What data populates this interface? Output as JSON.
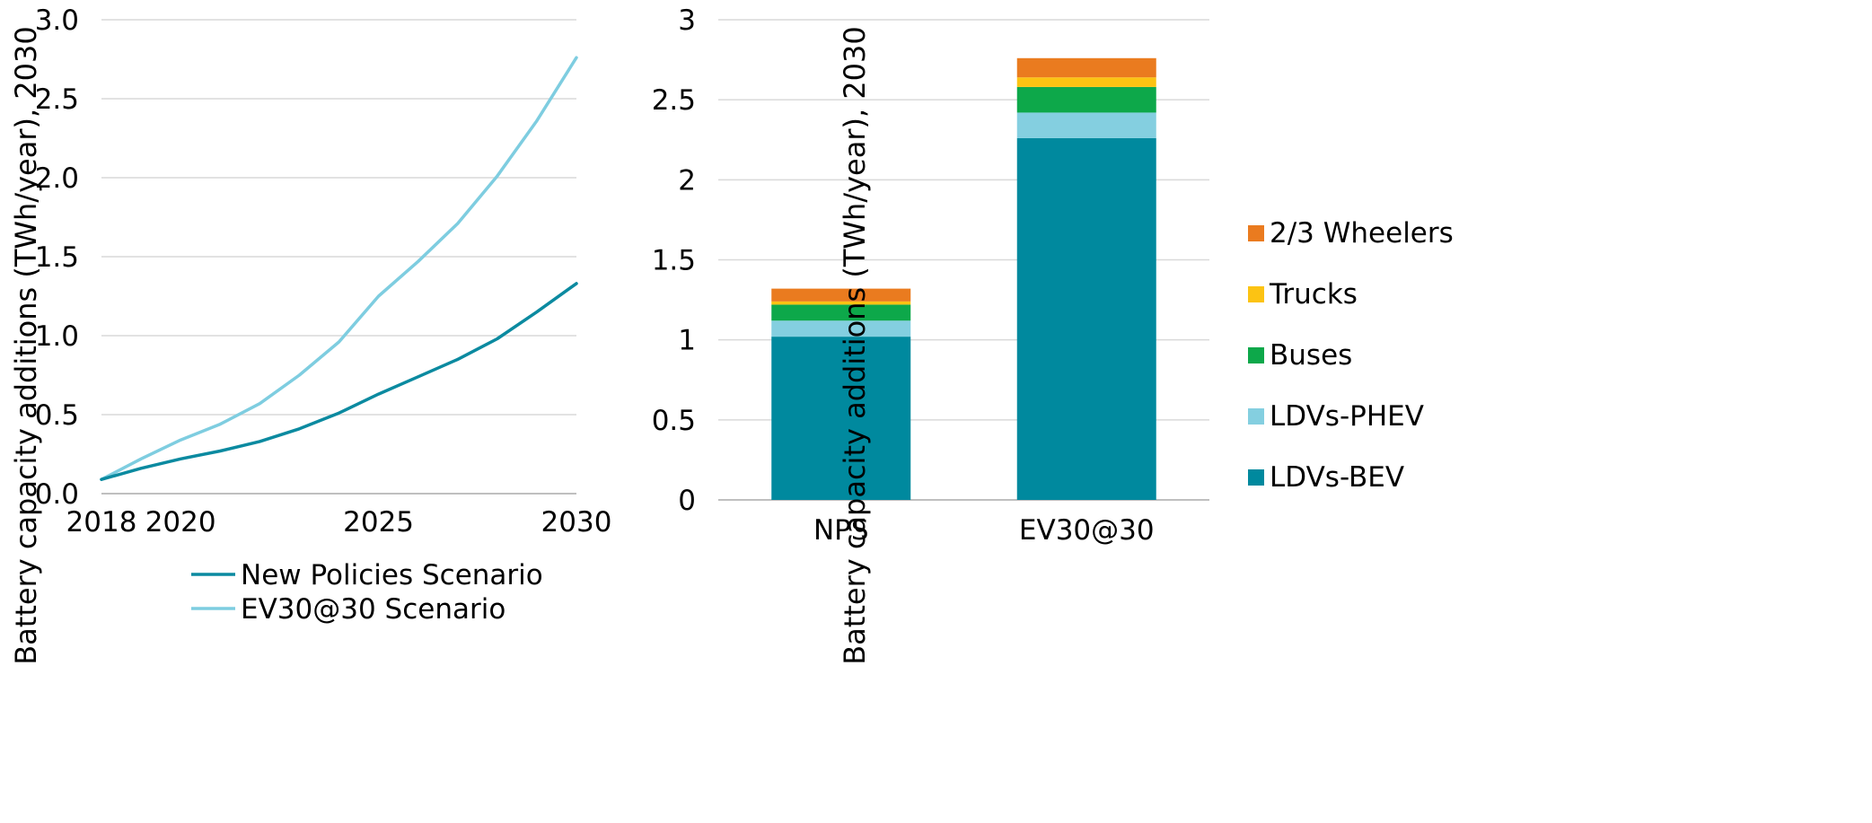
{
  "chart_data": [
    {
      "type": "line",
      "title": "",
      "xlabel": "",
      "ylabel": "Battery capacity additions (TWh/year), 2030",
      "x": [
        2018,
        2019,
        2020,
        2021,
        2022,
        2023,
        2024,
        2025,
        2026,
        2027,
        2028,
        2029,
        2030
      ],
      "x_ticks": [
        "2018",
        "2020",
        "2025",
        "2030"
      ],
      "xlim": [
        2018,
        2030
      ],
      "y_ticks": [
        "0.0",
        "0.5",
        "1.0",
        "1.5",
        "2.0",
        "2.5",
        "3.0"
      ],
      "ylim": [
        0,
        3.0
      ],
      "grid": true,
      "legend_position": "bottom",
      "series": [
        {
          "name": "New Policies Scenario",
          "color": "#0b8aa0",
          "values": [
            0.09,
            0.16,
            0.22,
            0.27,
            0.33,
            0.41,
            0.51,
            0.63,
            0.74,
            0.85,
            0.98,
            1.15,
            1.33
          ]
        },
        {
          "name": "EV30@30 Scenario",
          "color": "#7ecde0",
          "values": [
            0.09,
            0.22,
            0.34,
            0.44,
            0.57,
            0.75,
            0.96,
            1.25,
            1.47,
            1.71,
            2.01,
            2.36,
            2.76
          ]
        }
      ]
    },
    {
      "type": "bar",
      "stacked": true,
      "title": "",
      "xlabel": "",
      "ylabel": "Battery capacity additions (TWh/year), 2030",
      "categories": [
        "NPS",
        "EV30@30"
      ],
      "y_ticks": [
        "0",
        "0.5",
        "1",
        "1.5",
        "2",
        "2.5",
        "3"
      ],
      "ylim": [
        0,
        3
      ],
      "grid": true,
      "legend_position": "right",
      "series": [
        {
          "name": "LDVs-BEV",
          "color": "#00899e",
          "values": [
            1.02,
            2.26
          ]
        },
        {
          "name": "LDVs-PHEV",
          "color": "#84cfe0",
          "values": [
            0.1,
            0.16
          ]
        },
        {
          "name": "Buses",
          "color": "#0da84a",
          "values": [
            0.1,
            0.16
          ]
        },
        {
          "name": "Trucks",
          "color": "#fcc313",
          "values": [
            0.02,
            0.06
          ]
        },
        {
          "name": "2/3 Wheelers",
          "color": "#ea7b1f",
          "values": [
            0.08,
            0.12
          ]
        }
      ]
    }
  ]
}
